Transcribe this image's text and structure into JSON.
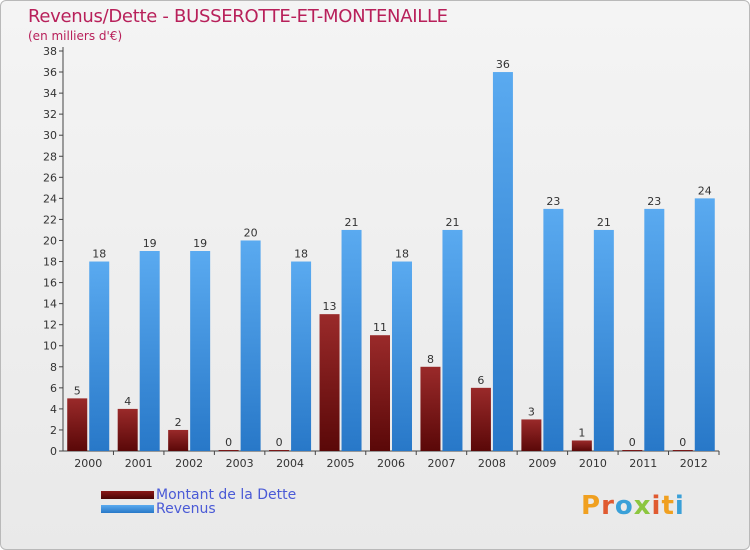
{
  "title": "Revenus/Dette - BUSSEROTTE-ET-MONTENAILLE",
  "subtitle": "(en milliers d'€)",
  "logo": "Proxiti",
  "chart_data": {
    "type": "bar",
    "categories": [
      "2000",
      "2001",
      "2002",
      "2003",
      "2004",
      "2005",
      "2006",
      "2007",
      "2008",
      "2009",
      "2010",
      "2011",
      "2012"
    ],
    "series": [
      {
        "name": "Montant de la Dette",
        "color": "#7a1010",
        "values": [
          5,
          4,
          2,
          0,
          0,
          13,
          11,
          8,
          6,
          3,
          1,
          0,
          0
        ]
      },
      {
        "name": "Revenus",
        "color": "#3a8fd9",
        "values": [
          18,
          19,
          19,
          20,
          18,
          21,
          18,
          21,
          36,
          23,
          21,
          23,
          24
        ]
      }
    ],
    "ylim": [
      0,
      38
    ],
    "yticks": [
      0,
      2,
      4,
      6,
      8,
      10,
      12,
      14,
      16,
      18,
      20,
      22,
      24,
      26,
      28,
      30,
      32,
      34,
      36,
      38
    ],
    "grid": false,
    "legend": "bottom-left"
  }
}
